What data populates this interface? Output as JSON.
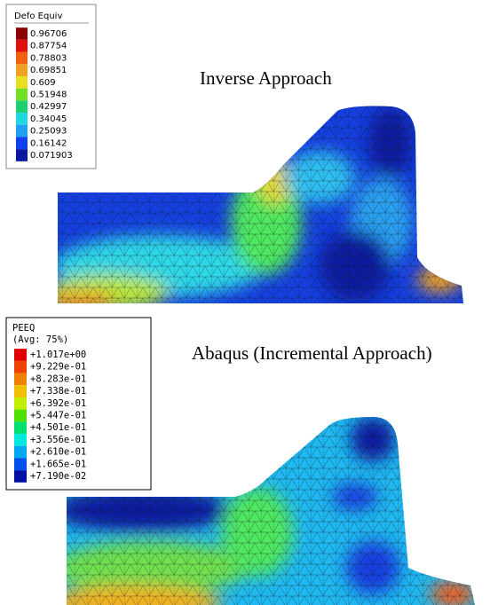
{
  "legend_top": {
    "title": "Defo Equiv",
    "labels": [
      "0.96706",
      "0.87754",
      "0.78803",
      "0.69851",
      "0.609",
      "0.51948",
      "0.42997",
      "0.34045",
      "0.25093",
      "0.16142",
      "0.071903"
    ]
  },
  "caption_top": "Inverse Approach",
  "legend_bottom": {
    "title": "PEEQ",
    "subtitle": "(Avg: 75%)",
    "labels": [
      "+1.017e+00",
      "+9.229e-01",
      "+8.283e-01",
      "+7.338e-01",
      "+6.392e-01",
      "+5.447e-01",
      "+4.501e-01",
      "+3.556e-01",
      "+2.610e-01",
      "+1.665e-01",
      "+7.190e-02"
    ]
  },
  "caption_bottom": "Abaqus (Incremental Approach)"
}
